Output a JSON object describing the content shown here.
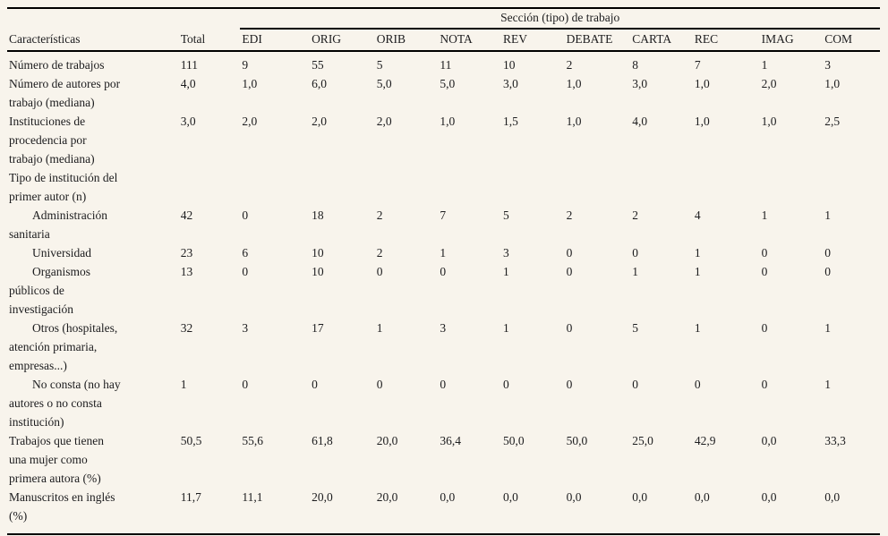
{
  "page": {
    "background_color": "#f8f4ec",
    "text_color": "#1c1c1e",
    "rule_color": "#000000"
  },
  "table": {
    "spanner_title": "Sección (tipo) de trabajo",
    "row_header_label": "Características",
    "columns": [
      "Total",
      "EDI",
      "ORIG",
      "ORIB",
      "NOTA",
      "REV",
      "DEBATE",
      "CARTA",
      "REC",
      "IMAG",
      "COM"
    ],
    "rows": [
      {
        "label": "Número de trabajos",
        "indent": false,
        "values": [
          "111",
          "9",
          "55",
          "5",
          "11",
          "10",
          "2",
          "8",
          "7",
          "1",
          "3"
        ]
      },
      {
        "label": "Número de autores por\ntrabajo (mediana)",
        "indent": false,
        "values": [
          "4,0",
          "1,0",
          "6,0",
          "5,0",
          "5,0",
          "3,0",
          "1,0",
          "3,0",
          "1,0",
          "2,0",
          "1,0"
        ]
      },
      {
        "label": "Instituciones de\nprocedencia por\ntrabajo (mediana)",
        "indent": false,
        "values": [
          "3,0",
          "2,0",
          "2,0",
          "2,0",
          "1,0",
          "1,5",
          "1,0",
          "4,0",
          "1,0",
          "1,0",
          "2,5"
        ]
      },
      {
        "label": "Tipo de institución del\nprimer autor (n)",
        "indent": false,
        "values": [
          "",
          "",
          "",
          "",
          "",
          "",
          "",
          "",
          "",
          "",
          ""
        ]
      },
      {
        "label": "Administración\nsanitaria",
        "indent": true,
        "values": [
          "42",
          "0",
          "18",
          "2",
          "7",
          "5",
          "2",
          "2",
          "4",
          "1",
          "1"
        ]
      },
      {
        "label": "Universidad",
        "indent": true,
        "values": [
          "23",
          "6",
          "10",
          "2",
          "1",
          "3",
          "0",
          "0",
          "1",
          "0",
          "0"
        ]
      },
      {
        "label": "Organismos\npúblicos de\ninvestigación",
        "indent": true,
        "values": [
          "13",
          "0",
          "10",
          "0",
          "0",
          "1",
          "0",
          "1",
          "1",
          "0",
          "0"
        ]
      },
      {
        "label": "Otros (hospitales,\natención primaria,\nempresas...)",
        "indent": true,
        "values": [
          "32",
          "3",
          "17",
          "1",
          "3",
          "1",
          "0",
          "5",
          "1",
          "0",
          "1"
        ]
      },
      {
        "label": "No consta (no hay\nautores o no consta\ninstitución)",
        "indent": true,
        "values": [
          "1",
          "0",
          "0",
          "0",
          "0",
          "0",
          "0",
          "0",
          "0",
          "0",
          "1"
        ]
      },
      {
        "label": "Trabajos que tienen\nuna mujer como\nprimera autora (%)",
        "indent": false,
        "values": [
          "50,5",
          "55,6",
          "61,8",
          "20,0",
          "36,4",
          "50,0",
          "50,0",
          "25,0",
          "42,9",
          "0,0",
          "33,3"
        ]
      },
      {
        "label": "Manuscritos en inglés\n(%)",
        "indent": false,
        "values": [
          "11,7",
          "11,1",
          "20,0",
          "20,0",
          "0,0",
          "0,0",
          "0,0",
          "0,0",
          "0,0",
          "0,0",
          "0,0"
        ]
      }
    ]
  }
}
